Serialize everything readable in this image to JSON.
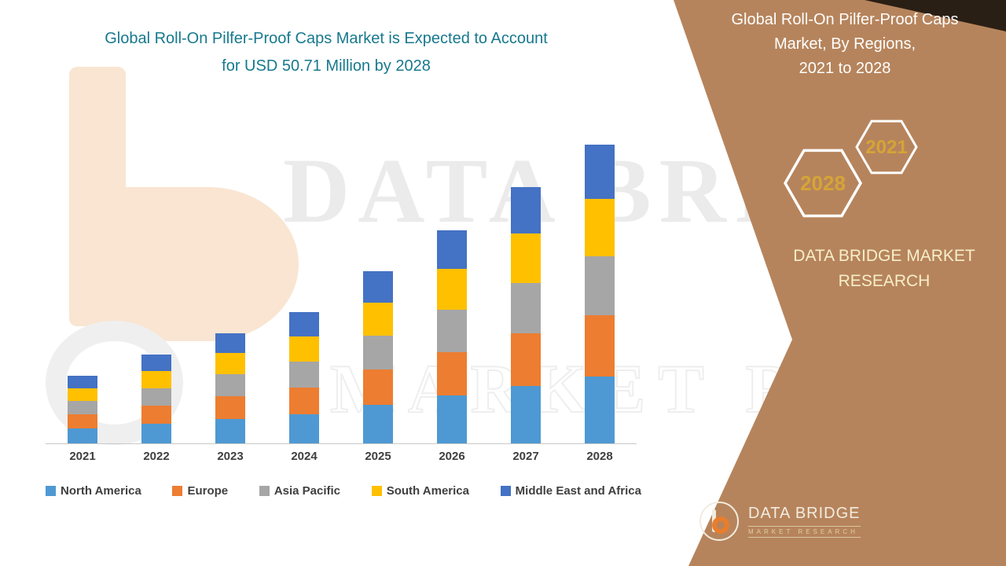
{
  "left_title": {
    "line1": "Global Roll-On Pilfer-Proof Caps Market is Expected to Account",
    "line2": "for USD 50.71 Million by 2028"
  },
  "right_panel": {
    "title_line1": "Global Roll-On Pilfer-Proof Caps",
    "title_line2": "Market, By Regions,",
    "title_line3": "2021 to 2028",
    "hex_small_label": "2021",
    "hex_large_label": "2028",
    "brand_line1": "DATA BRIDGE MARKET",
    "brand_line2": "RESEARCH",
    "colors": {
      "panel": "#b6845c",
      "corner": "#2a1f15",
      "hex_stroke": "#ffffff",
      "hex_text": "#d6a437"
    }
  },
  "watermark": {
    "line1": "DATA BRIDGE",
    "line2": "MARKET RESEARCH"
  },
  "footer_logo": {
    "name": "DATA BRIDGE",
    "sub": "MARKET RESEARCH"
  },
  "chart_data": {
    "type": "bar",
    "stacked": true,
    "title": "Global Roll-On Pilfer-Proof Caps Market, By Regions, 2021 to 2028",
    "unit": "USD Million",
    "categories": [
      "2021",
      "2022",
      "2023",
      "2024",
      "2025",
      "2026",
      "2027",
      "2028"
    ],
    "series": [
      {
        "name": "North America",
        "color": "#4e99d3",
        "values": [
          2.6,
          3.4,
          4.2,
          5.0,
          6.5,
          8.1,
          9.7,
          11.3
        ]
      },
      {
        "name": "Europe",
        "color": "#ed7d31",
        "values": [
          2.4,
          3.1,
          3.9,
          4.6,
          6.0,
          7.4,
          8.9,
          10.4
        ]
      },
      {
        "name": "Asia Pacific",
        "color": "#a6a6a6",
        "values": [
          2.3,
          3.0,
          3.7,
          4.4,
          5.8,
          7.2,
          8.6,
          10.0
        ]
      },
      {
        "name": "South America",
        "color": "#ffc000",
        "values": [
          2.2,
          2.9,
          3.6,
          4.3,
          5.6,
          7.0,
          8.4,
          9.8
        ]
      },
      {
        "name": "Middle East and Africa",
        "color": "#4472c4",
        "values": [
          2.1,
          2.8,
          3.4,
          4.1,
          5.3,
          6.6,
          7.9,
          9.2
        ]
      }
    ],
    "totals": [
      11.6,
      15.2,
      18.8,
      22.4,
      29.2,
      36.3,
      43.5,
      50.71
    ],
    "key_value": "USD 50.71 Million by 2028",
    "xlabel": "",
    "ylabel": "",
    "ylim": [
      0,
      51
    ],
    "grid": false,
    "legend_position": "bottom"
  }
}
